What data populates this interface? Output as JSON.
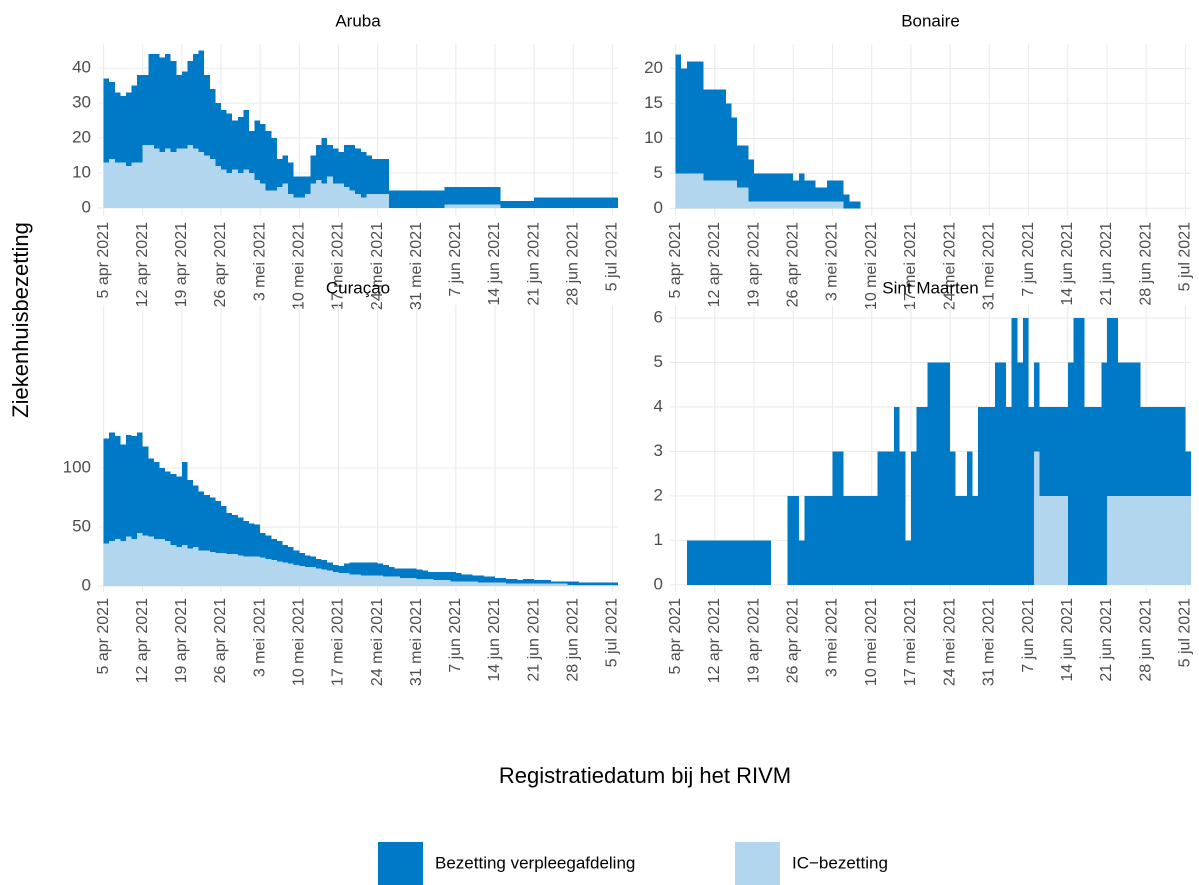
{
  "chart_data": {
    "type": "area",
    "stacked": true,
    "grid": true,
    "legend_position": "bottom",
    "ylabel": "Ziekenhuisbezetting",
    "xlabel": "Registratiedatum bij het RIVM",
    "legend": [
      {
        "name": "Bezetting verpleegafdeling",
        "color": "#0079c6"
      },
      {
        "name": "IC−bezetting",
        "color": "#b2d6ee"
      }
    ],
    "x": [
      "2021-04-05",
      "2021-04-06",
      "2021-04-07",
      "2021-04-08",
      "2021-04-09",
      "2021-04-10",
      "2021-04-11",
      "2021-04-12",
      "2021-04-13",
      "2021-04-14",
      "2021-04-15",
      "2021-04-16",
      "2021-04-17",
      "2021-04-18",
      "2021-04-19",
      "2021-04-20",
      "2021-04-21",
      "2021-04-22",
      "2021-04-23",
      "2021-04-24",
      "2021-04-25",
      "2021-04-26",
      "2021-04-27",
      "2021-04-28",
      "2021-04-29",
      "2021-04-30",
      "2021-05-01",
      "2021-05-02",
      "2021-05-03",
      "2021-05-04",
      "2021-05-05",
      "2021-05-06",
      "2021-05-07",
      "2021-05-08",
      "2021-05-09",
      "2021-05-10",
      "2021-05-11",
      "2021-05-12",
      "2021-05-13",
      "2021-05-14",
      "2021-05-15",
      "2021-05-16",
      "2021-05-17",
      "2021-05-18",
      "2021-05-19",
      "2021-05-20",
      "2021-05-21",
      "2021-05-22",
      "2021-05-23",
      "2021-05-24",
      "2021-05-25",
      "2021-05-26",
      "2021-05-27",
      "2021-05-28",
      "2021-05-29",
      "2021-05-30",
      "2021-05-31",
      "2021-06-01",
      "2021-06-02",
      "2021-06-03",
      "2021-06-04",
      "2021-06-05",
      "2021-06-06",
      "2021-06-07",
      "2021-06-08",
      "2021-06-09",
      "2021-06-10",
      "2021-06-11",
      "2021-06-12",
      "2021-06-13",
      "2021-06-14",
      "2021-06-15",
      "2021-06-16",
      "2021-06-17",
      "2021-06-18",
      "2021-06-19",
      "2021-06-20",
      "2021-06-21",
      "2021-06-22",
      "2021-06-23",
      "2021-06-24",
      "2021-06-25",
      "2021-06-26",
      "2021-06-27",
      "2021-06-28",
      "2021-06-29",
      "2021-06-30",
      "2021-07-01",
      "2021-07-02",
      "2021-07-03",
      "2021-07-04",
      "2021-07-05"
    ],
    "xlim": [
      "2021-04-04",
      "2021-07-06"
    ],
    "xticks": [
      {
        "value": "2021-04-05",
        "label": "5 apr 2021"
      },
      {
        "value": "2021-04-12",
        "label": "12 apr 2021"
      },
      {
        "value": "2021-04-19",
        "label": "19 apr 2021"
      },
      {
        "value": "2021-04-26",
        "label": "26 apr 2021"
      },
      {
        "value": "2021-05-03",
        "label": "3 mei 2021"
      },
      {
        "value": "2021-05-10",
        "label": "10 mei 2021"
      },
      {
        "value": "2021-05-17",
        "label": "17 mei 2021"
      },
      {
        "value": "2021-05-24",
        "label": "24 mei 2021"
      },
      {
        "value": "2021-05-31",
        "label": "31 mei 2021"
      },
      {
        "value": "2021-06-07",
        "label": "7 jun 2021"
      },
      {
        "value": "2021-06-14",
        "label": "14 jun 2021"
      },
      {
        "value": "2021-06-21",
        "label": "21 jun 2021"
      },
      {
        "value": "2021-06-28",
        "label": "28 jun 2021"
      },
      {
        "value": "2021-07-05",
        "label": "5 jul 2021"
      }
    ],
    "panels": [
      {
        "title": "Aruba",
        "ylim": [
          -2.3,
          46.9
        ],
        "yticks": [
          0,
          10,
          20,
          30,
          40
        ],
        "series": [
          {
            "values": [
              24,
              22,
              20,
              19,
              21,
              22,
              25,
              20,
              26,
              27,
              27,
              27,
              26,
              21,
              22,
              24,
              27,
              29,
              23,
              20,
              18,
              17,
              17,
              14,
              16,
              17,
              12,
              17,
              17,
              17,
              15,
              8,
              8,
              9,
              6,
              6,
              5,
              8,
              10,
              13,
              9,
              10,
              9,
              12,
              13,
              13,
              13,
              11,
              10,
              10,
              10,
              5,
              5,
              5,
              5,
              5,
              5,
              5,
              5,
              5,
              5,
              5,
              5,
              5,
              5,
              5,
              5,
              5,
              5,
              5,
              5,
              2,
              2,
              2,
              2,
              2,
              2,
              3,
              3,
              3,
              3,
              3,
              3,
              3,
              3,
              3,
              3,
              3,
              3,
              3,
              3,
              3
            ]
          },
          {
            "values": [
              13,
              14,
              13,
              13,
              12,
              13,
              13,
              18,
              18,
              17,
              16,
              17,
              16,
              17,
              17,
              18,
              17,
              16,
              15,
              14,
              12,
              11,
              10,
              11,
              10,
              11,
              10,
              8,
              7,
              5,
              5,
              6,
              7,
              4,
              3,
              3,
              4,
              7,
              8,
              7,
              9,
              7,
              7,
              6,
              5,
              4,
              3,
              4,
              4,
              4,
              4,
              0,
              0,
              0,
              0,
              0,
              0,
              0,
              0,
              0,
              0,
              1,
              1,
              1,
              1,
              1,
              1,
              1,
              1,
              1,
              1,
              0,
              0,
              0,
              0,
              0,
              0,
              0,
              0,
              0,
              0,
              0,
              0,
              0,
              0,
              0,
              0,
              0,
              0,
              0,
              0,
              0
            ]
          }
        ]
      },
      {
        "title": "Bonaire",
        "ylim": [
          -1.1,
          23.5
        ],
        "yticks": [
          0,
          5,
          10,
          15,
          20
        ],
        "series": [
          {
            "values": [
              17,
              15,
              16,
              16,
              16,
              13,
              13,
              13,
              13,
              11,
              9,
              6,
              6,
              6,
              4,
              4,
              4,
              4,
              4,
              4,
              4,
              3,
              4,
              3,
              3,
              2,
              2,
              3,
              3,
              3,
              2,
              1,
              1,
              0,
              0,
              0,
              0,
              0,
              0,
              0,
              0,
              0,
              0,
              0,
              0,
              0,
              0,
              0,
              0,
              0,
              0,
              0,
              0,
              0,
              0,
              0,
              0,
              0,
              0,
              0,
              0,
              0,
              0,
              0,
              0,
              0,
              0,
              0,
              0,
              0,
              0,
              0,
              0,
              0,
              0,
              0,
              0,
              0,
              0,
              0,
              0,
              0,
              0,
              0,
              0,
              0,
              0,
              0,
              0,
              0,
              0,
              0
            ]
          },
          {
            "values": [
              5,
              5,
              5,
              5,
              5,
              4,
              4,
              4,
              4,
              4,
              4,
              3,
              3,
              1,
              1,
              1,
              1,
              1,
              1,
              1,
              1,
              1,
              1,
              1,
              1,
              1,
              1,
              1,
              1,
              1,
              0,
              0,
              0,
              0,
              0,
              0,
              0,
              0,
              0,
              0,
              0,
              0,
              0,
              0,
              0,
              0,
              0,
              0,
              0,
              0,
              0,
              0,
              0,
              0,
              0,
              0,
              0,
              0,
              0,
              0,
              0,
              0,
              0,
              0,
              0,
              0,
              0,
              0,
              0,
              0,
              0,
              0,
              0,
              0,
              0,
              0,
              0,
              0,
              0,
              0,
              0,
              0,
              0,
              0,
              0,
              0,
              0,
              0,
              0,
              0,
              0,
              0
            ]
          }
        ]
      },
      {
        "title": "Curaçao",
        "ylim": [
          -5,
          238
        ],
        "yticks": [
          0,
          50,
          100
        ],
        "series": [
          {
            "values": [
              89,
              92,
              87,
              82,
              86,
              87,
              85,
              75,
              66,
              65,
              60,
              59,
              60,
              60,
              70,
              58,
              52,
              50,
              47,
              46,
              44,
              40,
              35,
              33,
              32,
              30,
              28,
              27,
              21,
              20,
              18,
              17,
              15,
              14,
              12,
              11,
              10,
              9,
              8,
              8,
              7,
              6,
              6,
              8,
              10,
              10,
              11,
              11,
              11,
              10,
              10,
              8,
              7,
              8,
              8,
              8,
              8,
              7,
              6,
              7,
              7,
              7,
              8,
              7,
              6,
              6,
              5,
              6,
              5,
              5,
              4,
              4,
              4,
              4,
              3,
              4,
              4,
              3,
              3,
              3,
              2,
              2,
              2,
              3,
              3,
              2,
              2,
              2,
              2,
              2,
              2,
              2
            ]
          },
          {
            "values": [
              36,
              38,
              40,
              38,
              42,
              40,
              45,
              43,
              42,
              40,
              40,
              38,
              35,
              33,
              35,
              32,
              33,
              30,
              30,
              29,
              28,
              28,
              27,
              27,
              26,
              25,
              25,
              25,
              24,
              23,
              22,
              21,
              20,
              19,
              18,
              17,
              16,
              16,
              15,
              14,
              13,
              12,
              11,
              11,
              10,
              10,
              9,
              9,
              9,
              9,
              8,
              8,
              8,
              7,
              7,
              7,
              6,
              6,
              6,
              5,
              5,
              5,
              4,
              4,
              4,
              4,
              4,
              3,
              3,
              3,
              3,
              3,
              2,
              2,
              2,
              2,
              2,
              2,
              2,
              2,
              2,
              2,
              2,
              1,
              1,
              1,
              1,
              1,
              1,
              1,
              1,
              1
            ]
          }
        ]
      },
      {
        "title": "Sint Maarten",
        "ylim": [
          -0.16,
          6.29
        ],
        "yticks": [
          0,
          1,
          2,
          3,
          4,
          5,
          6
        ],
        "series": [
          {
            "values": [
              0,
              0,
              1,
              1,
              1,
              1,
              1,
              1,
              1,
              1,
              1,
              1,
              1,
              1,
              1,
              1,
              1,
              0,
              0,
              0,
              2,
              2,
              1,
              2,
              2,
              2,
              2,
              2,
              3,
              3,
              2,
              2,
              2,
              2,
              2,
              2,
              3,
              3,
              3,
              4,
              3,
              1,
              3,
              4,
              4,
              5,
              5,
              5,
              5,
              3,
              2,
              2,
              3,
              2,
              4,
              4,
              4,
              5,
              5,
              4,
              6,
              5,
              6,
              4,
              2,
              2,
              2,
              2,
              2,
              2,
              5,
              6,
              6,
              4,
              4,
              4,
              5,
              4,
              4,
              3,
              3,
              3,
              3,
              2,
              2,
              2,
              2,
              2,
              2,
              2,
              2,
              1
            ]
          },
          {
            "values": [
              0,
              0,
              0,
              0,
              0,
              0,
              0,
              0,
              0,
              0,
              0,
              0,
              0,
              0,
              0,
              0,
              0,
              0,
              0,
              0,
              0,
              0,
              0,
              0,
              0,
              0,
              0,
              0,
              0,
              0,
              0,
              0,
              0,
              0,
              0,
              0,
              0,
              0,
              0,
              0,
              0,
              0,
              0,
              0,
              0,
              0,
              0,
              0,
              0,
              0,
              0,
              0,
              0,
              0,
              0,
              0,
              0,
              0,
              0,
              0,
              0,
              0,
              0,
              0,
              3,
              2,
              2,
              2,
              2,
              2,
              0,
              0,
              0,
              0,
              0,
              0,
              0,
              2,
              2,
              2,
              2,
              2,
              2,
              2,
              2,
              2,
              2,
              2,
              2,
              2,
              2,
              2
            ]
          }
        ]
      }
    ]
  }
}
